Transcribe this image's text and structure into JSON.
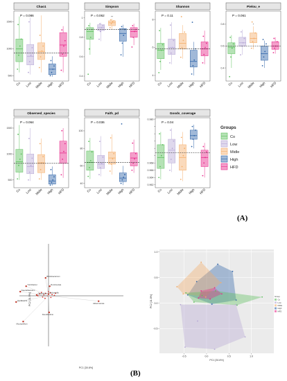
{
  "groups": [
    "Co",
    "Low",
    "Midle",
    "High",
    "HFD"
  ],
  "colors": {
    "Co": "#5bbf5b",
    "Low": "#b7a8d6",
    "Midle": "#f4ae6a",
    "High": "#2f64a8",
    "HFD": "#e7298a"
  },
  "legend_title": "Groups",
  "panel_a_label": "(A)",
  "panel_b_label": "(B)",
  "chart_data": [
    {
      "type": "box",
      "title": "Chao1",
      "p_label": "P = 0.086",
      "ylim": [
        400,
        1700
      ],
      "yticks": [
        500,
        1000,
        1500
      ],
      "mean": 920,
      "sig": {},
      "boxes": [
        {
          "q1": 760,
          "med": 1000,
          "q3": 1180,
          "lo": 560,
          "hi": 1600
        },
        {
          "q1": 700,
          "med": 860,
          "q3": 1080,
          "lo": 520,
          "hi": 1580
        },
        {
          "q1": 800,
          "med": 950,
          "q3": 1110,
          "lo": 560,
          "hi": 1620
        },
        {
          "q1": 520,
          "med": 620,
          "q3": 720,
          "lo": 480,
          "hi": 860
        },
        {
          "q1": 860,
          "med": 1070,
          "q3": 1300,
          "lo": 560,
          "hi": 1420
        }
      ],
      "points": [
        [
          620,
          880,
          1050,
          1180,
          1450
        ],
        [
          560,
          760,
          880,
          1020,
          1500
        ],
        [
          650,
          850,
          960,
          1050,
          1250
        ],
        [
          500,
          560,
          620,
          680,
          780
        ],
        [
          600,
          900,
          1050,
          1150,
          1350
        ]
      ]
    },
    {
      "type": "box",
      "title": "Simpson",
      "p_label": "P = 0.062",
      "ylim": [
        0.35,
        1.07
      ],
      "yticks": [
        0.4,
        0.6,
        0.8,
        1.0
      ],
      "mean": 0.88,
      "sig": {
        "2": "**"
      },
      "boxes": [
        {
          "q1": 0.78,
          "med": 0.86,
          "q3": 0.9,
          "lo": 0.62,
          "hi": 0.95
        },
        {
          "q1": 0.87,
          "med": 0.9,
          "q3": 0.93,
          "lo": 0.76,
          "hi": 0.95
        },
        {
          "q1": 0.92,
          "med": 0.95,
          "q3": 0.97,
          "lo": 0.88,
          "hi": 0.99
        },
        {
          "q1": 0.76,
          "med": 0.84,
          "q3": 0.89,
          "lo": 0.6,
          "hi": 0.93
        },
        {
          "q1": 0.8,
          "med": 0.86,
          "q3": 0.9,
          "lo": 0.72,
          "hi": 0.94
        }
      ],
      "points": [
        [
          0.42,
          0.68,
          0.8,
          0.88,
          0.92
        ],
        [
          0.78,
          0.86,
          0.9,
          0.92,
          0.94
        ],
        [
          0.9,
          0.94,
          0.96,
          0.97,
          0.98
        ],
        [
          0.62,
          0.74,
          0.82,
          0.88,
          0.91
        ],
        [
          0.7,
          0.8,
          0.86,
          0.88,
          0.92
        ]
      ]
    },
    {
      "type": "box",
      "title": "Shannon",
      "p_label": "P = 0.11",
      "ylim": [
        3.6,
        8.6
      ],
      "yticks": [
        4,
        6,
        8
      ],
      "mean": 5.9,
      "sig": {},
      "boxes": [
        {
          "q1": 5.2,
          "med": 5.8,
          "q3": 6.3,
          "lo": 4.4,
          "hi": 7.4
        },
        {
          "q1": 5.5,
          "med": 6.0,
          "q3": 6.6,
          "lo": 4.8,
          "hi": 7.8
        },
        {
          "q1": 5.9,
          "med": 6.3,
          "q3": 7.0,
          "lo": 5.2,
          "hi": 7.6
        },
        {
          "q1": 4.6,
          "med": 5.0,
          "q3": 5.8,
          "lo": 4.0,
          "hi": 6.4
        },
        {
          "q1": 5.4,
          "med": 5.9,
          "q3": 6.4,
          "lo": 4.8,
          "hi": 7.2
        }
      ],
      "points": [
        [
          4.2,
          5.0,
          5.8,
          6.2,
          7.2
        ],
        [
          4.9,
          5.6,
          6.0,
          6.5,
          7.6
        ],
        [
          5.3,
          6.0,
          6.5,
          7.1,
          8.2
        ],
        [
          4.1,
          4.7,
          5.1,
          5.9,
          7.8
        ],
        [
          4.9,
          5.5,
          6.0,
          6.3,
          6.8
        ]
      ]
    },
    {
      "type": "box",
      "title": "Pielou_e",
      "p_label": "P = 0.061",
      "ylim": [
        0.28,
        0.92
      ],
      "yticks": [
        0.4,
        0.6,
        0.8
      ],
      "mean": 0.6,
      "sig": {
        "2": "*"
      },
      "boxes": [
        {
          "q1": 0.53,
          "med": 0.59,
          "q3": 0.63,
          "lo": 0.4,
          "hi": 0.7
        },
        {
          "q1": 0.6,
          "med": 0.63,
          "q3": 0.68,
          "lo": 0.52,
          "hi": 0.75
        },
        {
          "q1": 0.63,
          "med": 0.67,
          "q3": 0.72,
          "lo": 0.57,
          "hi": 0.78
        },
        {
          "q1": 0.47,
          "med": 0.53,
          "q3": 0.6,
          "lo": 0.4,
          "hi": 0.65
        },
        {
          "q1": 0.57,
          "med": 0.6,
          "q3": 0.64,
          "lo": 0.53,
          "hi": 0.68
        }
      ],
      "points": [
        [
          0.32,
          0.5,
          0.58,
          0.62,
          0.68
        ],
        [
          0.52,
          0.6,
          0.63,
          0.67,
          0.73
        ],
        [
          0.58,
          0.64,
          0.67,
          0.72,
          0.82
        ],
        [
          0.42,
          0.5,
          0.55,
          0.62,
          0.66
        ],
        [
          0.54,
          0.58,
          0.6,
          0.64,
          0.67
        ]
      ]
    },
    {
      "type": "box",
      "title": "Observed_species",
      "p_label": "P = 0.064",
      "ylim": [
        350,
        1700
      ],
      "yticks": [
        500,
        1000,
        1500
      ],
      "mean": 820,
      "sig": {},
      "boxes": [
        {
          "q1": 650,
          "med": 850,
          "q3": 1090,
          "lo": 500,
          "hi": 1560
        },
        {
          "q1": 620,
          "med": 760,
          "q3": 1000,
          "lo": 480,
          "hi": 1500
        },
        {
          "q1": 640,
          "med": 830,
          "q3": 990,
          "lo": 500,
          "hi": 1300
        },
        {
          "q1": 420,
          "med": 480,
          "q3": 600,
          "lo": 390,
          "hi": 760
        },
        {
          "q1": 820,
          "med": 1020,
          "q3": 1250,
          "lo": 540,
          "hi": 1500
        }
      ],
      "points": [
        [
          520,
          780,
          900,
          1000,
          1380
        ],
        [
          500,
          650,
          780,
          920,
          1300
        ],
        [
          520,
          700,
          830,
          950,
          1200
        ],
        [
          400,
          450,
          500,
          560,
          700
        ],
        [
          600,
          900,
          1050,
          1200,
          1450
        ]
      ]
    },
    {
      "type": "box",
      "title": "Faith_pd",
      "p_label": "P = 0.036",
      "ylim": [
        35,
        115
      ],
      "yticks": [
        40,
        60,
        80,
        100
      ],
      "mean": 64,
      "sig": {},
      "boxes": [
        {
          "q1": 55,
          "med": 64,
          "q3": 77,
          "lo": 45,
          "hi": 92
        },
        {
          "q1": 57,
          "med": 62,
          "q3": 72,
          "lo": 48,
          "hi": 94
        },
        {
          "q1": 62,
          "med": 69,
          "q3": 76,
          "lo": 50,
          "hi": 96
        },
        {
          "q1": 42,
          "med": 46,
          "q3": 52,
          "lo": 38,
          "hi": 60
        },
        {
          "q1": 60,
          "med": 69,
          "q3": 75,
          "lo": 52,
          "hi": 90
        }
      ],
      "points": [
        [
          48,
          58,
          66,
          76,
          88
        ],
        [
          50,
          58,
          63,
          70,
          88
        ],
        [
          54,
          62,
          68,
          74,
          92
        ],
        [
          40,
          44,
          47,
          50,
          108
        ],
        [
          55,
          63,
          68,
          74,
          86
        ]
      ]
    },
    {
      "type": "box",
      "title": "Goods_coverage",
      "p_label": "P = 0.04",
      "ylim": [
        0.9612,
        0.9804
      ],
      "yticks": [
        0.962,
        0.964,
        0.966,
        0.968,
        0.97,
        0.972,
        0.974,
        0.976,
        0.978,
        0.98
      ],
      "tick_labels": [
        "0.962",
        "0.964",
        "0.966",
        "0.968",
        "",
        "",
        "",
        "",
        "",
        "0.980"
      ],
      "mean": 0.9708,
      "sig": {},
      "boxes": [
        {
          "q1": 0.9665,
          "med": 0.9695,
          "q3": 0.973,
          "lo": 0.9635,
          "hi": 0.9765
        },
        {
          "q1": 0.968,
          "med": 0.9715,
          "q3": 0.9745,
          "lo": 0.9655,
          "hi": 0.9775
        },
        {
          "q1": 0.966,
          "med": 0.9695,
          "q3": 0.973,
          "lo": 0.963,
          "hi": 0.9765
        },
        {
          "q1": 0.9745,
          "med": 0.9755,
          "q3": 0.977,
          "lo": 0.972,
          "hi": 0.9785
        },
        {
          "q1": 0.967,
          "med": 0.9695,
          "q3": 0.9715,
          "lo": 0.964,
          "hi": 0.9735
        }
      ],
      "points": [
        [
          0.964,
          0.967,
          0.97,
          0.973,
          0.976
        ],
        [
          0.966,
          0.969,
          0.972,
          0.974,
          0.977
        ],
        [
          0.9635,
          0.967,
          0.97,
          0.972,
          0.975
        ],
        [
          0.9725,
          0.9745,
          0.9755,
          0.977,
          0.978
        ],
        [
          0.9645,
          0.968,
          0.9695,
          0.971,
          0.9725
        ]
      ]
    },
    {
      "type": "scatter",
      "title": "",
      "xlabel": "PC1 [30.8%]",
      "ylabel": "PC2 [11.5%]",
      "xlim": [
        -1,
        1
      ],
      "ylim": [
        -1,
        1
      ],
      "taxa": [
        {
          "name": "Bifidobacterium",
          "x": -0.05,
          "y": 0.43
        },
        {
          "name": "Turicibacter",
          "x": -0.38,
          "y": 0.23
        },
        {
          "name": "Romboutsia",
          "x": 0.02,
          "y": 0.23
        },
        {
          "name": "Faecalibaculum",
          "x": -0.48,
          "y": 0.1
        },
        {
          "name": "Clostridium",
          "x": -0.2,
          "y": 0.02
        },
        {
          "name": "Dubosiella",
          "x": 0.0,
          "y": 0.04
        },
        {
          "name": "Akkermansia",
          "x": 0.85,
          "y": -0.13
        },
        {
          "name": "Oscillospira",
          "x": -0.55,
          "y": -0.15
        },
        {
          "name": "Desulfovibrio",
          "x": 0.01,
          "y": -0.4
        },
        {
          "name": "Mucispirillum",
          "x": -0.43,
          "y": -0.62
        }
      ],
      "cluster": [
        [
          -0.15,
          0.05
        ],
        [
          -0.12,
          0.08
        ],
        [
          -0.08,
          0.02
        ],
        [
          -0.05,
          0.06
        ],
        [
          -0.02,
          0.0
        ],
        [
          0.03,
          0.07
        ],
        [
          0.06,
          0.03
        ],
        [
          -0.1,
          -0.03
        ],
        [
          0.1,
          0.01
        ],
        [
          -0.18,
          0.0
        ],
        [
          0.04,
          -0.04
        ],
        [
          -0.06,
          -0.06
        ],
        [
          0.12,
          0.06
        ],
        [
          0.0,
          0.1
        ]
      ]
    },
    {
      "type": "scatter",
      "title": "",
      "xlabel": "PC1 [30.8%]",
      "ylabel": "PC2 [11.8%]",
      "xlim": [
        -1.05,
        1.5
      ],
      "ylim": [
        -0.98,
        1.05
      ],
      "xticks": [
        -0.5,
        0.0,
        0.5,
        1.0
      ],
      "xtick_labels": [
        "-0.5",
        "0.0",
        "0.5",
        "1.0"
      ],
      "yticks": [
        -0.5,
        0.0,
        0.5,
        1.0
      ],
      "ytick_labels": [
        "-0.5",
        "0.0",
        "0.5",
        "1.0"
      ],
      "legend_title": "Group",
      "legend": [
        "Co",
        "Low",
        "Midle",
        "High",
        "HFD"
      ],
      "hulls": [
        {
          "group": "Low",
          "points": [
            [
              -0.58,
              -0.03
            ],
            [
              0.66,
              -0.03
            ],
            [
              0.86,
              -0.66
            ],
            [
              0.18,
              -0.9
            ],
            [
              -0.48,
              -0.86
            ]
          ]
        },
        {
          "group": "High",
          "points": [
            [
              -0.22,
              0.42
            ],
            [
              0.25,
              0.76
            ],
            [
              0.58,
              0.62
            ],
            [
              0.66,
              0.06
            ],
            [
              0.12,
              -0.02
            ],
            [
              -0.42,
              0.16
            ]
          ]
        },
        {
          "group": "Midle",
          "points": [
            [
              -0.66,
              0.32
            ],
            [
              -0.12,
              0.8
            ],
            [
              0.32,
              0.4
            ],
            [
              -0.02,
              0.12
            ],
            [
              -0.52,
              0.18
            ]
          ]
        },
        {
          "group": "Co",
          "points": [
            [
              -0.46,
              0.2
            ],
            [
              0.2,
              0.24
            ],
            [
              1.24,
              0.12
            ],
            [
              0.68,
              -0.04
            ],
            [
              -0.28,
              0.02
            ]
          ]
        },
        {
          "group": "HFD",
          "points": [
            [
              -0.12,
              0.24
            ],
            [
              0.18,
              0.3
            ],
            [
              0.34,
              0.18
            ],
            [
              0.08,
              0.08
            ],
            [
              -0.18,
              0.1
            ]
          ]
        }
      ],
      "points": [
        {
          "group": "Co",
          "pts": [
            [
              -0.46,
              0.2
            ],
            [
              1.24,
              0.12
            ],
            [
              0.68,
              -0.04
            ],
            [
              -0.28,
              0.02
            ],
            [
              0.2,
              0.24
            ],
            [
              -0.1,
              0.15
            ]
          ]
        },
        {
          "group": "Low",
          "pts": [
            [
              -0.58,
              -0.03
            ],
            [
              0.66,
              -0.03
            ],
            [
              0.86,
              -0.66
            ],
            [
              0.18,
              -0.9
            ],
            [
              -0.48,
              -0.86
            ],
            [
              -0.2,
              -0.35
            ]
          ]
        },
        {
          "group": "Midle",
          "pts": [
            [
              -0.66,
              0.32
            ],
            [
              -0.12,
              0.8
            ],
            [
              0.32,
              0.4
            ],
            [
              -0.02,
              0.12
            ],
            [
              -0.52,
              0.18
            ]
          ]
        },
        {
          "group": "High",
          "pts": [
            [
              -0.22,
              0.42
            ],
            [
              0.25,
              0.76
            ],
            [
              0.58,
              0.62
            ],
            [
              0.66,
              0.06
            ],
            [
              0.12,
              -0.02
            ],
            [
              -0.42,
              0.16
            ]
          ]
        },
        {
          "group": "HFD",
          "pts": [
            [
              -0.12,
              0.24
            ],
            [
              0.18,
              0.3
            ],
            [
              0.34,
              0.18
            ],
            [
              0.08,
              0.08
            ],
            [
              -0.18,
              0.1
            ]
          ]
        }
      ]
    }
  ]
}
